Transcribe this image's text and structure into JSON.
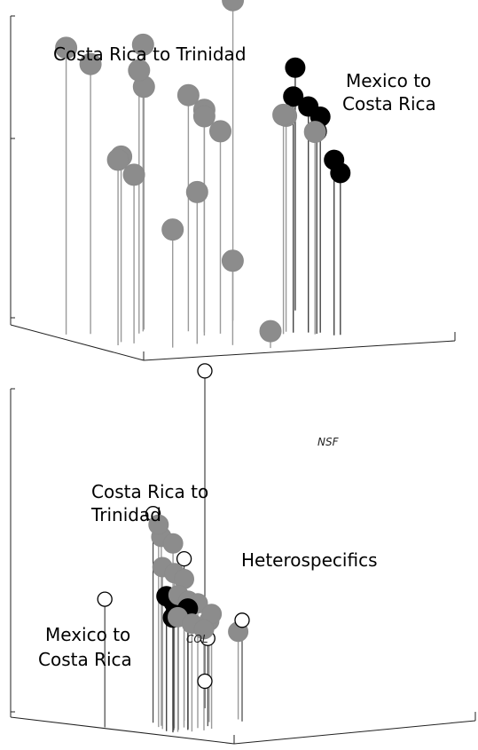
{
  "chart_data": [
    {
      "type": "scatter",
      "style": "3d-stem",
      "title": "",
      "xlabel": "",
      "ylabel": "",
      "zlabel": "",
      "grid": false,
      "annotations": [
        {
          "id": "cr-tr",
          "text_lines": [
            "Costa Rica to Trinidad"
          ]
        },
        {
          "id": "mx-cr",
          "text_lines": [
            "Mexico to",
            "Costa Rica"
          ]
        }
      ],
      "series": [
        {
          "group": "Costa Rica to Trinidad",
          "color": "#8c8c8c",
          "points": [
            {
              "x": 0.62,
              "y": 0.78,
              "z": 0.95
            },
            {
              "x": 0.05,
              "y": 0.7,
              "z": 0.85
            },
            {
              "x": 0.12,
              "y": 0.68,
              "z": 0.8
            },
            {
              "x": 0.25,
              "y": 0.62,
              "z": 0.78
            },
            {
              "x": 0.3,
              "y": 0.7,
              "z": 0.72
            },
            {
              "x": 0.28,
              "y": 0.66,
              "z": 0.85
            },
            {
              "x": 0.4,
              "y": 0.6,
              "z": 0.7
            },
            {
              "x": 0.43,
              "y": 0.55,
              "z": 0.66
            },
            {
              "x": 0.46,
              "y": 0.5,
              "z": 0.6
            },
            {
              "x": 0.4,
              "y": 0.48,
              "z": 0.65
            },
            {
              "x": 0.62,
              "y": 0.4,
              "z": 0.65
            },
            {
              "x": 0.7,
              "y": 0.35,
              "z": 0.6
            },
            {
              "x": 0.08,
              "y": 0.38,
              "z": 0.55
            },
            {
              "x": 0.12,
              "y": 0.45,
              "z": 0.55
            },
            {
              "x": 0.14,
              "y": 0.4,
              "z": 0.5
            },
            {
              "x": 0.3,
              "y": 0.3,
              "z": 0.45
            },
            {
              "x": 0.2,
              "y": 0.25,
              "z": 0.35
            },
            {
              "x": 0.38,
              "y": 0.22,
              "z": 0.25
            },
            {
              "x": 0.45,
              "y": 0.1,
              "z": 0.05
            },
            {
              "x": 0.65,
              "y": 0.45,
              "z": 0.64
            }
          ]
        },
        {
          "group": "Mexico to Costa Rica",
          "color": "#000000",
          "points": [
            {
              "x": 0.88,
              "y": 0.92,
              "z": 0.72
            },
            {
              "x": 0.66,
              "y": 0.42,
              "z": 0.7
            },
            {
              "x": 0.7,
              "y": 0.4,
              "z": 0.67
            },
            {
              "x": 0.73,
              "y": 0.38,
              "z": 0.64
            },
            {
              "x": 0.71,
              "y": 0.36,
              "z": 0.6
            },
            {
              "x": 0.74,
              "y": 0.3,
              "z": 0.52
            },
            {
              "x": 0.76,
              "y": 0.3,
              "z": 0.48
            }
          ]
        }
      ]
    },
    {
      "type": "scatter",
      "style": "3d-stem",
      "title": "",
      "xlabel": "",
      "ylabel": "",
      "zlabel": "",
      "grid": false,
      "annotations": [
        {
          "id": "cr-tr",
          "text_lines": [
            "Costa Rica to",
            "Trinidad"
          ]
        },
        {
          "id": "mx-cr",
          "text_lines": [
            "Mexico to",
            "Costa Rica"
          ]
        },
        {
          "id": "het",
          "text_lines": [
            "Heterospecifics"
          ]
        },
        {
          "id": "nsf",
          "text_lines": [
            "NSF"
          ]
        },
        {
          "id": "col",
          "text_lines": [
            "COL"
          ]
        }
      ],
      "series": [
        {
          "group": "Heterospecifics",
          "color": "#ffffff",
          "points": [
            {
              "x": 0.62,
              "y": 0.8,
              "z": 1.0
            },
            {
              "x": 0.62,
              "y": 0.8,
              "z": 0.08
            },
            {
              "x": 0.02,
              "y": 0.6,
              "z": 0.38
            },
            {
              "x": 0.22,
              "y": 0.6,
              "z": 0.62
            },
            {
              "x": 0.33,
              "y": 0.58,
              "z": 0.48
            },
            {
              "x": 0.28,
              "y": 0.42,
              "z": 0.26
            },
            {
              "x": 0.45,
              "y": 0.45,
              "z": 0.3
            }
          ]
        },
        {
          "group": "Costa Rica to Trinidad",
          "color": "#8c8c8c",
          "points": [
            {
              "x": 0.15,
              "y": 0.5,
              "z": 0.6
            },
            {
              "x": 0.18,
              "y": 0.52,
              "z": 0.56
            },
            {
              "x": 0.21,
              "y": 0.5,
              "z": 0.54
            },
            {
              "x": 0.12,
              "y": 0.45,
              "z": 0.48
            },
            {
              "x": 0.16,
              "y": 0.44,
              "z": 0.46
            },
            {
              "x": 0.2,
              "y": 0.44,
              "z": 0.44
            },
            {
              "x": 0.14,
              "y": 0.4,
              "z": 0.4
            },
            {
              "x": 0.18,
              "y": 0.4,
              "z": 0.38
            },
            {
              "x": 0.22,
              "y": 0.4,
              "z": 0.37
            },
            {
              "x": 0.1,
              "y": 0.36,
              "z": 0.34
            },
            {
              "x": 0.14,
              "y": 0.34,
              "z": 0.32
            },
            {
              "x": 0.24,
              "y": 0.36,
              "z": 0.34
            },
            {
              "x": 0.36,
              "y": 0.5,
              "z": 0.3
            },
            {
              "x": 0.48,
              "y": 0.5,
              "z": 0.26
            },
            {
              "x": 0.19,
              "y": 0.34,
              "z": 0.3
            }
          ]
        },
        {
          "group": "Mexico to Costa Rica",
          "color": "#000000",
          "points": [
            {
              "x": 0.09,
              "y": 0.4,
              "z": 0.4
            },
            {
              "x": 0.12,
              "y": 0.4,
              "z": 0.38
            },
            {
              "x": 0.08,
              "y": 0.36,
              "z": 0.34
            },
            {
              "x": 0.16,
              "y": 0.38,
              "z": 0.36
            }
          ]
        }
      ]
    }
  ]
}
